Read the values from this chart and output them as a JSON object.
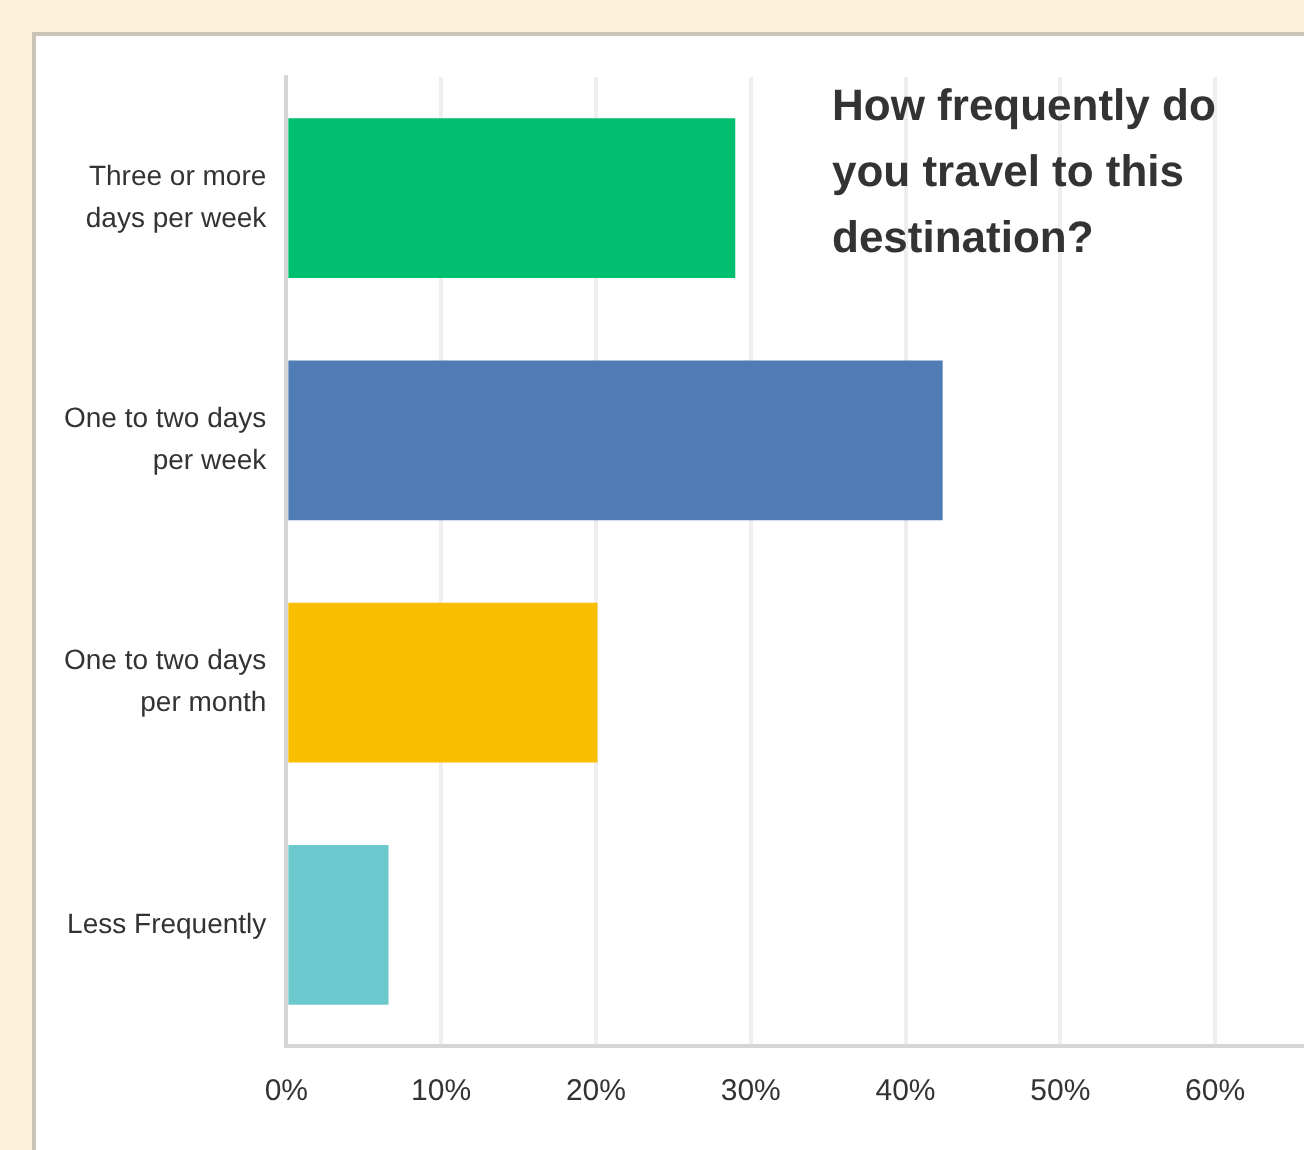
{
  "chart_data": {
    "type": "bar",
    "orientation": "horizontal",
    "title": "How frequently do you travel to this destination?",
    "categories": [
      "Three or more days per week",
      "One to two days per week",
      "One to two days per month",
      "Less Frequently"
    ],
    "values": [
      29.0,
      42.4,
      20.1,
      6.6
    ],
    "colors": [
      "#00bf6f",
      "#507cb6",
      "#f9be00",
      "#6bc8cd"
    ],
    "xlim": [
      0,
      66
    ],
    "xticks": [
      {
        "value": 0,
        "label": "0%"
      },
      {
        "value": 10,
        "label": "10%"
      },
      {
        "value": 20,
        "label": "20%"
      },
      {
        "value": 30,
        "label": "30%"
      },
      {
        "value": 40,
        "label": "40%"
      },
      {
        "value": 50,
        "label": "50%"
      },
      {
        "value": 60,
        "label": "60%"
      }
    ],
    "grid": "x",
    "legend": false
  }
}
